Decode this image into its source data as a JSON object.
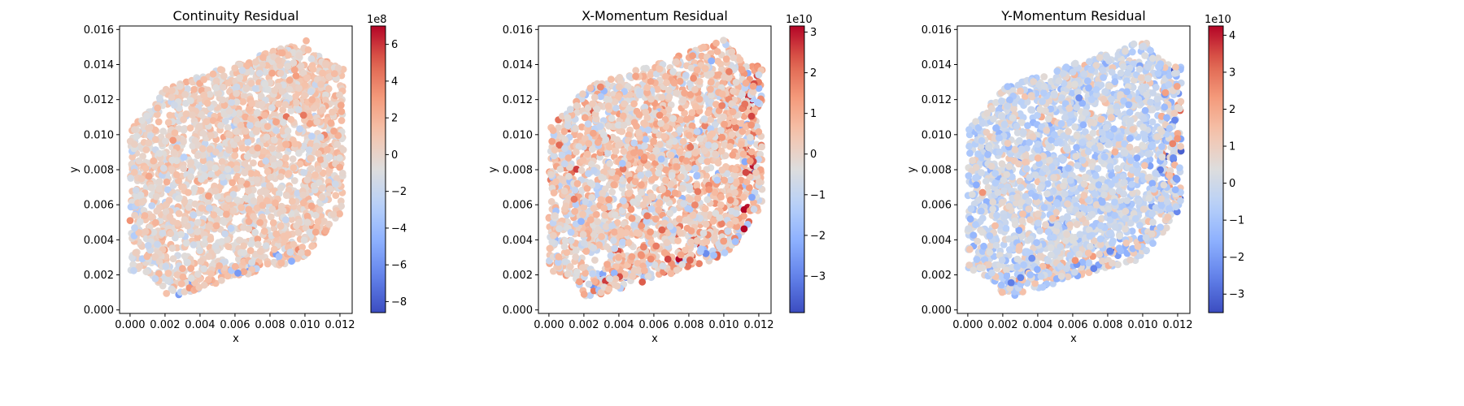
{
  "chart_data": [
    {
      "type": "scatter",
      "title": "Continuity Residual",
      "xlabel": "x",
      "ylabel": "y",
      "xlim": [
        -0.0006,
        0.0127
      ],
      "ylim": [
        -0.0002,
        0.0162
      ],
      "xticks": [
        "0.000",
        "0.002",
        "0.004",
        "0.006",
        "0.008",
        "0.010",
        "0.012"
      ],
      "yticks": [
        "0.000",
        "0.002",
        "0.004",
        "0.006",
        "0.008",
        "0.010",
        "0.012",
        "0.014",
        "0.016"
      ],
      "colormap": "coolwarm",
      "colorbar": {
        "range": [
          -860000000.0,
          700000000.0
        ],
        "multiplier_label": "1e8",
        "ticks": [
          -8,
          -6,
          -4,
          -2,
          0,
          2,
          4,
          6
        ],
        "tick_labels": [
          "−8",
          "−6",
          "−4",
          "−2",
          "0",
          "2",
          "4",
          "6"
        ]
      }
    },
    {
      "type": "scatter",
      "title": "X-Momentum Residual",
      "xlabel": "x",
      "ylabel": "y",
      "xlim": [
        -0.0006,
        0.0127
      ],
      "ylim": [
        -0.0002,
        0.0162
      ],
      "xticks": [
        "0.000",
        "0.002",
        "0.004",
        "0.006",
        "0.008",
        "0.010",
        "0.012"
      ],
      "yticks": [
        "0.000",
        "0.002",
        "0.004",
        "0.006",
        "0.008",
        "0.010",
        "0.012",
        "0.014",
        "0.016"
      ],
      "colormap": "coolwarm",
      "colorbar": {
        "range": [
          -39000000000.0,
          31500000000.0
        ],
        "multiplier_label": "1e10",
        "ticks": [
          -3,
          -2,
          -1,
          0,
          1,
          2,
          3
        ],
        "tick_labels": [
          "−3",
          "−2",
          "−1",
          "0",
          "1",
          "2",
          "3"
        ]
      }
    },
    {
      "type": "scatter",
      "title": "Y-Momentum Residual",
      "xlabel": "x",
      "ylabel": "y",
      "xlim": [
        -0.0006,
        0.0127
      ],
      "ylim": [
        -0.0002,
        0.0162
      ],
      "xticks": [
        "0.000",
        "0.002",
        "0.004",
        "0.006",
        "0.008",
        "0.010",
        "0.012"
      ],
      "yticks": [
        "0.000",
        "0.002",
        "0.004",
        "0.006",
        "0.008",
        "0.010",
        "0.012",
        "0.014",
        "0.016"
      ],
      "colormap": "coolwarm",
      "colorbar": {
        "range": [
          -35000000000.0,
          42500000000.0
        ],
        "multiplier_label": "1e10",
        "ticks": [
          -3,
          -2,
          -1,
          0,
          1,
          2,
          3,
          4
        ],
        "tick_labels": [
          "−3",
          "−2",
          "−1",
          "0",
          "1",
          "2",
          "3",
          "4"
        ]
      }
    }
  ]
}
